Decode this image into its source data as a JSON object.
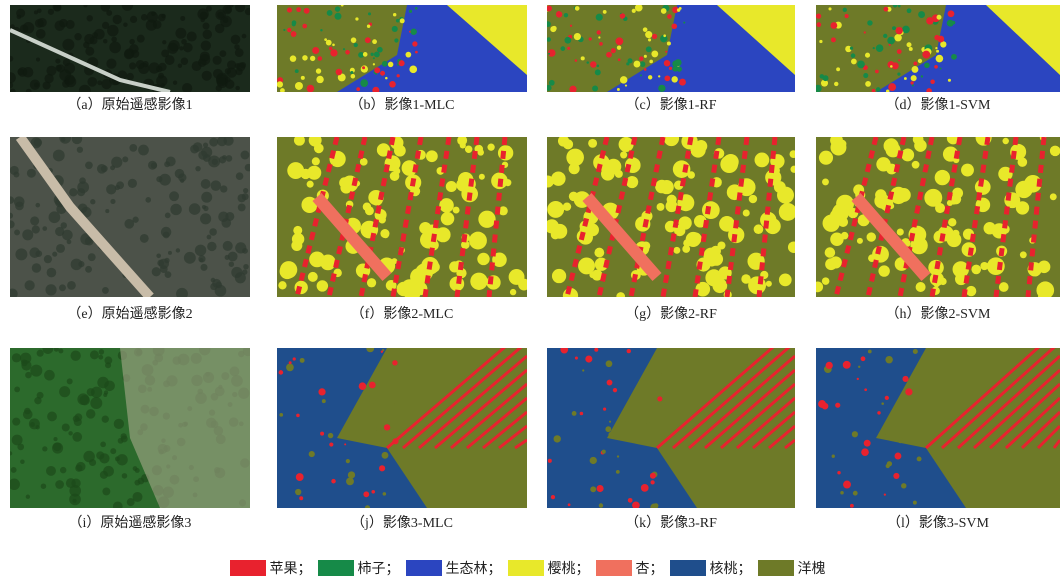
{
  "panels": [
    {
      "caption": "（a）原始遥感影像1"
    },
    {
      "caption": "（b）影像1-MLC"
    },
    {
      "caption": "（c）影像1-RF"
    },
    {
      "caption": "（d）影像1-SVM"
    },
    {
      "caption": "（e）原始遥感影像2"
    },
    {
      "caption": "（f）影像2-MLC"
    },
    {
      "caption": "（g）影像2-RF"
    },
    {
      "caption": "（h）影像2-SVM"
    },
    {
      "caption": "（i）原始遥感影像3"
    },
    {
      "caption": "（j）影像3-MLC"
    },
    {
      "caption": "（k）影像3-RF"
    },
    {
      "caption": "（l）影像3-SVM"
    }
  ],
  "legend": [
    {
      "label": "苹果；",
      "color": "#e8222e"
    },
    {
      "label": "柿子；",
      "color": "#168a48"
    },
    {
      "label": "生态林；",
      "color": "#2b45c0"
    },
    {
      "label": "樱桃；",
      "color": "#e8e82a"
    },
    {
      "label": "杏；",
      "color": "#f0705e"
    },
    {
      "label": "核桃；",
      "color": "#1f4e8c"
    },
    {
      "label": "洋槐",
      "color": "#6e7a28"
    }
  ]
}
